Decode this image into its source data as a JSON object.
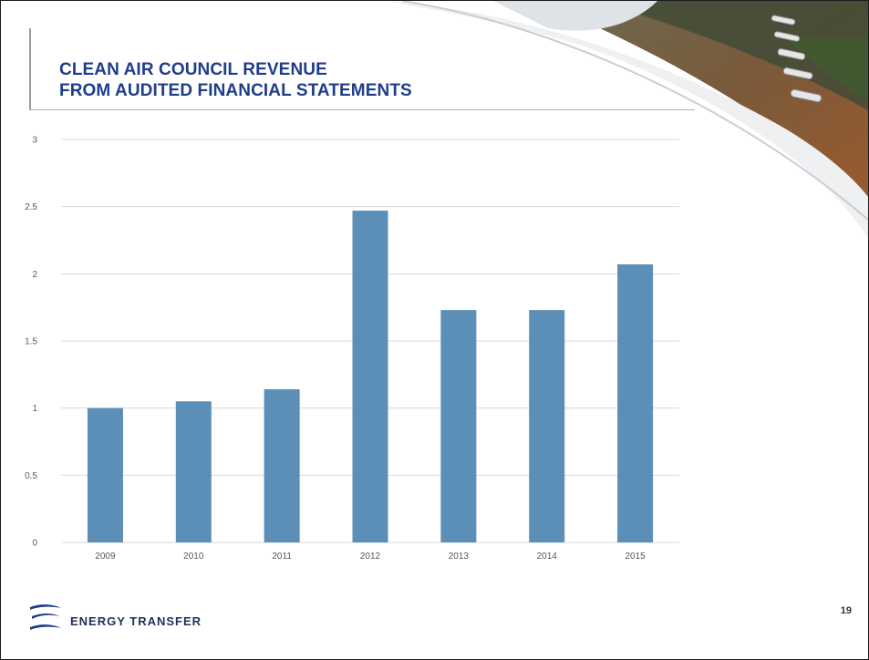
{
  "slide": {
    "title_line1": "CLEAN AIR COUNCIL REVENUE",
    "title_line2": "FROM AUDITED FINANCIAL STATEMENTS",
    "brand": "ENERGY TRANSFER",
    "page_number": "19"
  },
  "colors": {
    "title": "#1f3d8a",
    "bar": "#5b8fb7",
    "grid": "#d9d9d9",
    "tick_text": "#595959",
    "brand": "#1f2f5e"
  },
  "icons": [
    "energy-transfer-logo-icon",
    "pipeline-photo"
  ],
  "chart_data": {
    "type": "bar",
    "categories": [
      "2009",
      "2010",
      "2011",
      "2012",
      "2013",
      "2014",
      "2015"
    ],
    "values": [
      1.0,
      1.05,
      1.14,
      2.47,
      1.73,
      1.73,
      2.07
    ],
    "yticks": [
      "0",
      "0.5",
      "1",
      "1.5",
      "2",
      "2.5",
      "3"
    ],
    "ylim": [
      0,
      3
    ],
    "grid": true,
    "legend": "none",
    "title": "",
    "xlabel": "",
    "ylabel": ""
  }
}
